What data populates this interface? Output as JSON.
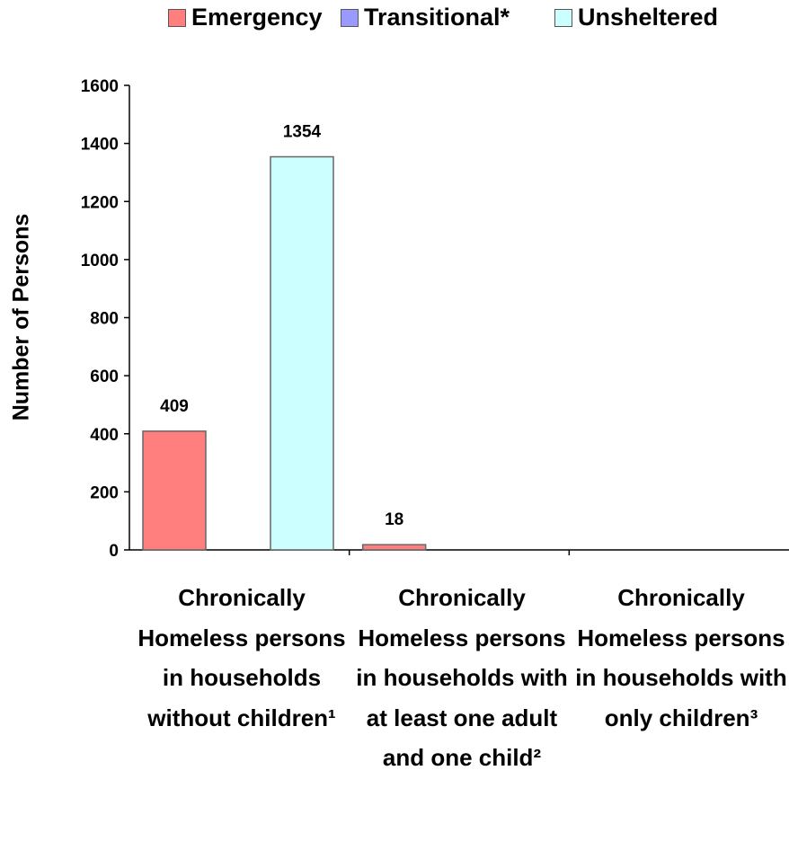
{
  "chart_data": {
    "type": "bar",
    "title": "",
    "xlabel": "",
    "ylabel": "Number of Persons",
    "ylim": [
      0,
      1600
    ],
    "yticks": [
      0,
      200,
      400,
      600,
      800,
      1000,
      1200,
      1400,
      1600
    ],
    "grid": false,
    "legend_placement": "top-center",
    "categories": [
      "Chronically Homeless persons in households without children¹",
      "Chronically Homeless persons in households with at least one adult and one child²",
      "Chronically Homeless persons in households with only children³"
    ],
    "series": [
      {
        "name": "Emergency",
        "color": "#ff7f7f",
        "values": [
          409,
          18,
          0
        ]
      },
      {
        "name": "Transitional*",
        "color": "#9999ff",
        "values": [
          0,
          0,
          0
        ]
      },
      {
        "name": "Unsheltered",
        "color": "#ccffff",
        "values": [
          1354,
          0,
          0
        ]
      }
    ],
    "data_labels": [
      {
        "series": 0,
        "category": 0,
        "text": "409"
      },
      {
        "series": 2,
        "category": 0,
        "text": "1354"
      },
      {
        "series": 0,
        "category": 1,
        "text": "18"
      }
    ]
  }
}
